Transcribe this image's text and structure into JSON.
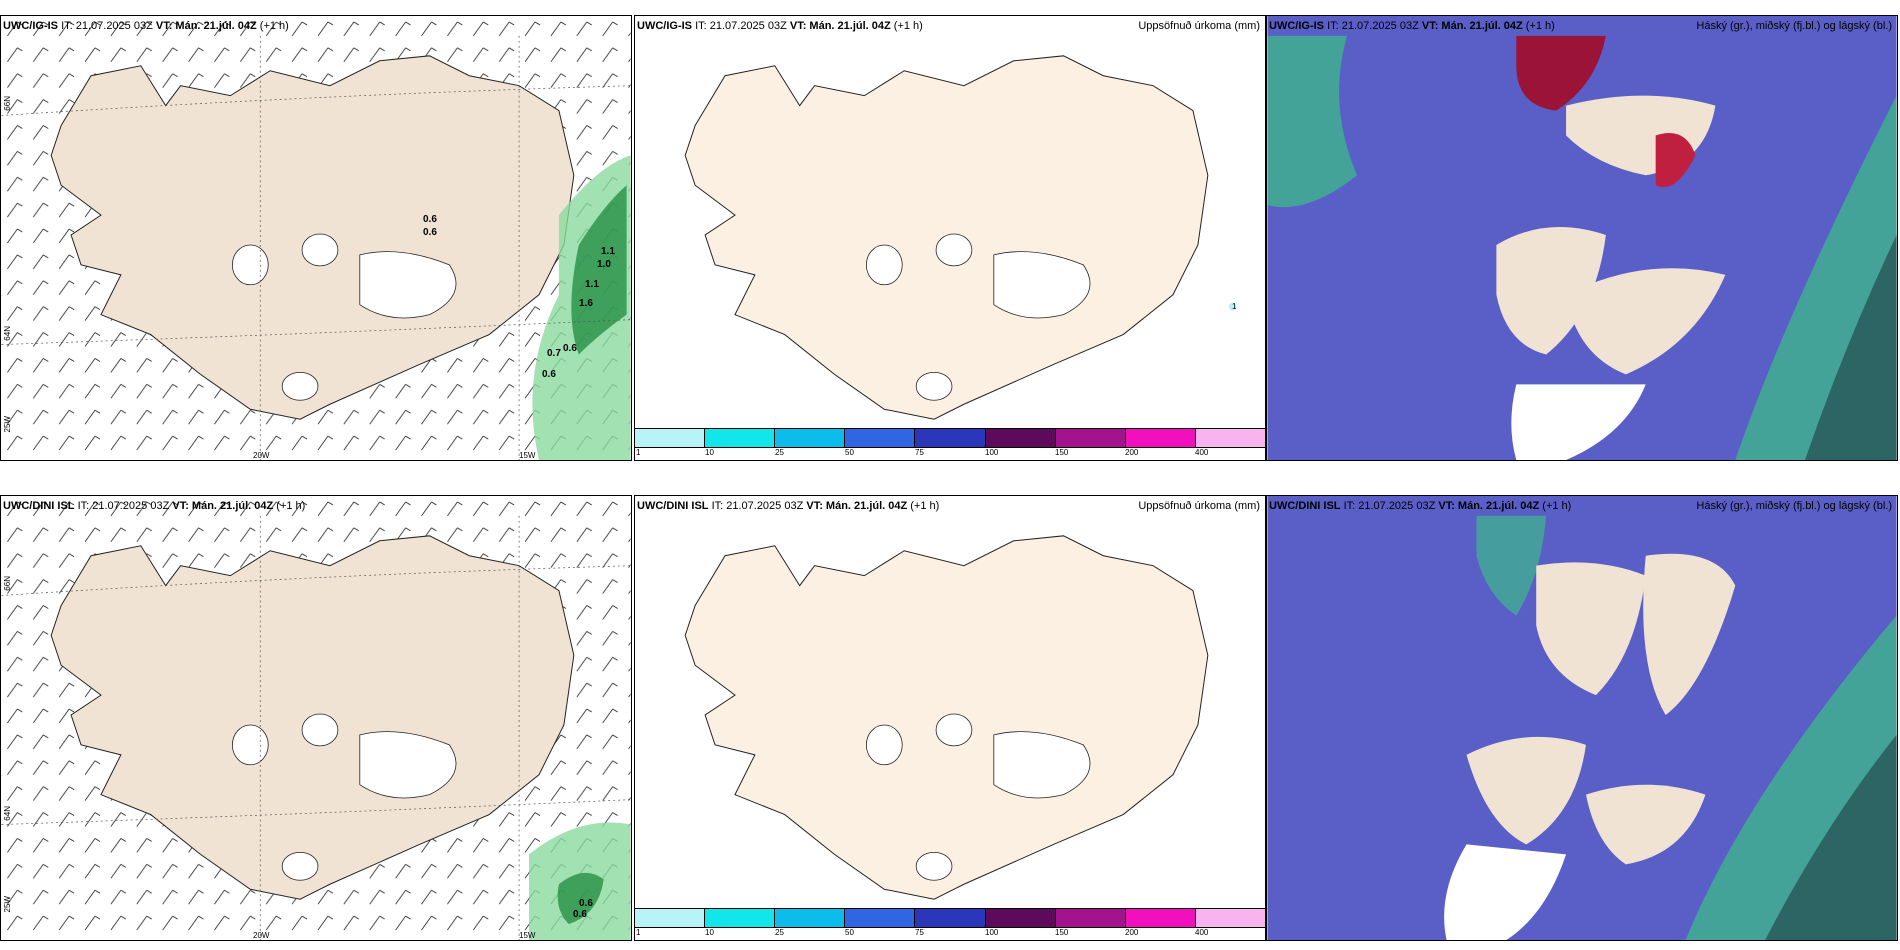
{
  "colors": {
    "land": "#f0e3d3",
    "land2": "#fcf0e2",
    "sea_blue": "#5a5fc8",
    "green": "#6fd38f",
    "dark_green": "#1d8a3d",
    "crimson": "#9b1437"
  },
  "rows": [
    {
      "model": "UWC/IG-IS",
      "it": "IT: 21.07.2025 03Z",
      "vt_label": "VT: Mán. 21.júl. 04Z",
      "offset": "(+1 h)",
      "grid": {
        "lat_top": "66N",
        "lat_mid": "64N",
        "lon_left": "25W",
        "lon_mid": "20W",
        "lon_right": "15W"
      },
      "values": [
        "0.6",
        "0.6",
        "1.0",
        "1.1",
        "1.6",
        "0.7",
        "0.6",
        "0.6",
        "1.1"
      ],
      "tiny_value": "1"
    },
    {
      "model": "UWC/DINI ISL",
      "it": "IT: 21.07.2025 03Z",
      "vt_label": "VT: Mán. 21.júl. 04Z",
      "offset": "(+1 h)",
      "grid": {
        "lat_top": "66N",
        "lat_mid": "64N",
        "lon_left": "25W",
        "lon_mid": "20W",
        "lon_right": "15W"
      },
      "values": [
        "0.6",
        "0.6"
      ]
    }
  ],
  "precip_title": "Uppsöfnuð úrkoma (mm)",
  "cloud_title": "Háský (gr.), miðský (fj.bl.) og lágský (bl.)",
  "colorbar": {
    "colors": [
      "#b7f4f7",
      "#12e6ea",
      "#0cbcea",
      "#3066e4",
      "#2a37b8",
      "#5e0a5a",
      "#a4138e",
      "#f20fbd",
      "#f7b4ef"
    ],
    "labels": [
      "1",
      "10",
      "25",
      "50",
      "75",
      "100",
      "150",
      "200",
      "400"
    ]
  }
}
